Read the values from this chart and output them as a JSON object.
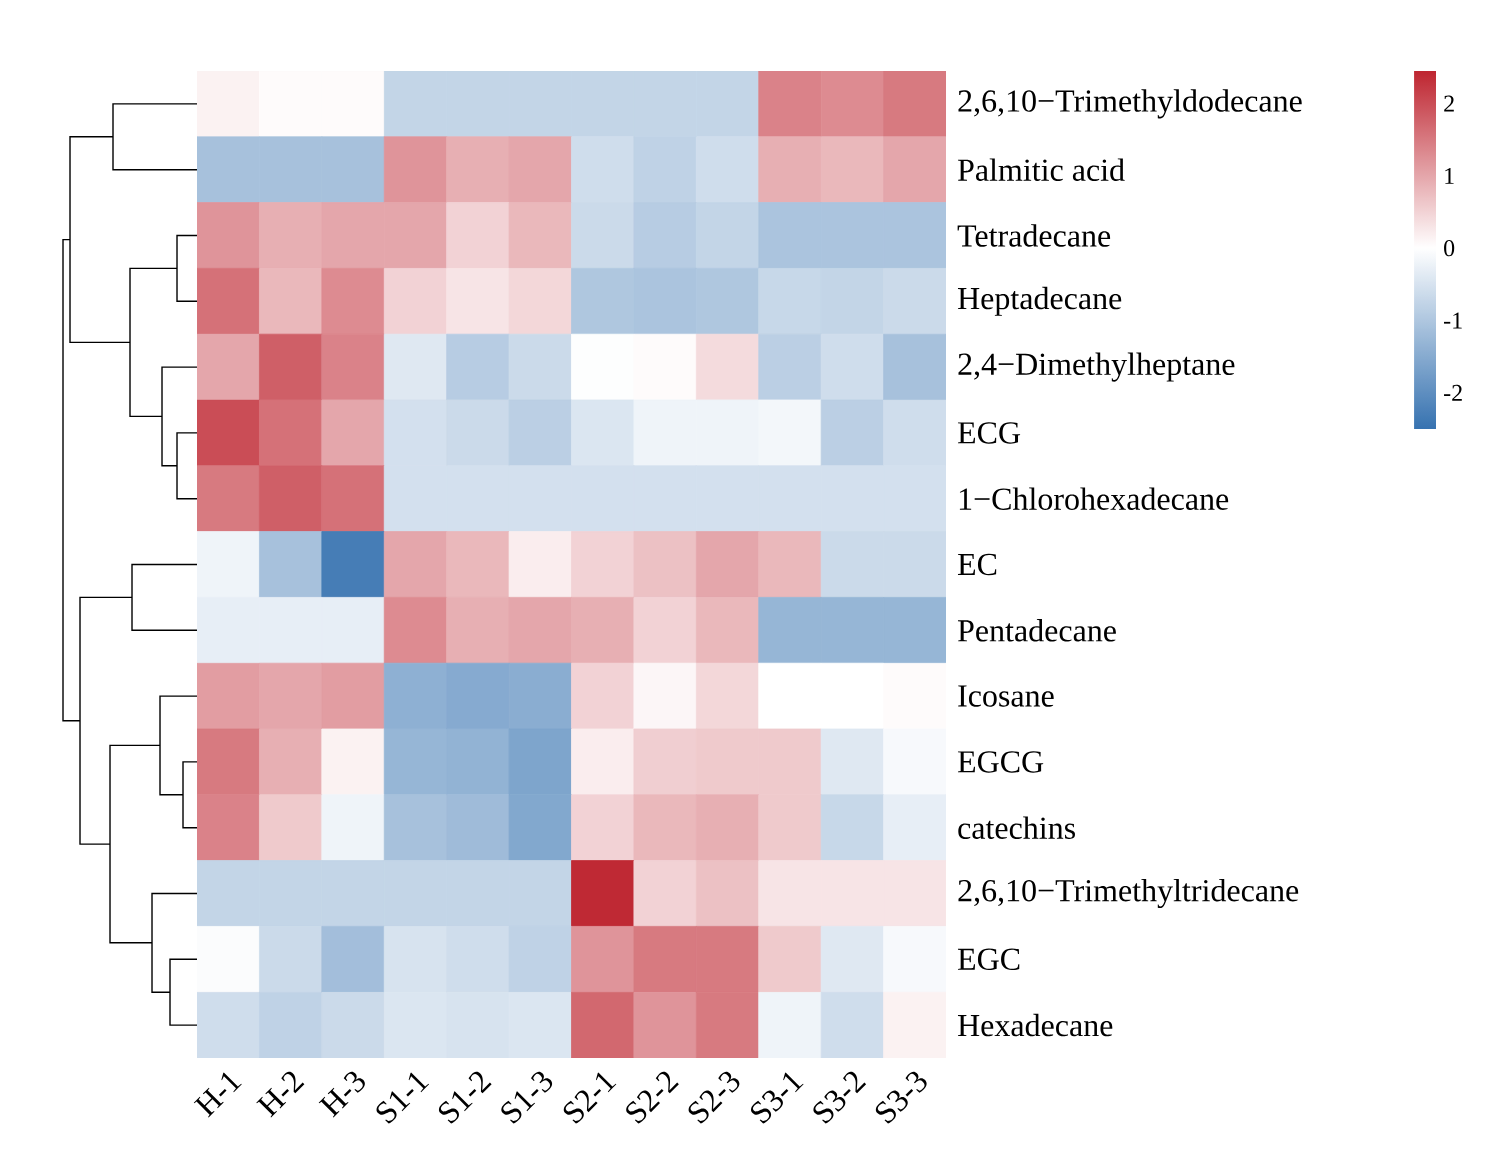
{
  "chart_data": {
    "type": "heatmap",
    "categories": [
      "H-1",
      "H-2",
      "H-3",
      "S1-1",
      "S1-2",
      "S1-3",
      "S2-1",
      "S2-2",
      "S2-3",
      "S3-1",
      "S3-2",
      "S3-3"
    ],
    "y_categories": [
      "2,6,10−Trimethyldodecane",
      "Palmitic acid",
      "Tetradecane",
      "Heptadecane",
      "2,4−Dimethylheptane",
      "ECG",
      "1−Chlorohexadecane",
      "EC",
      "Pentadecane",
      "Icosane",
      "EGCG",
      "catechins",
      "2,6,10−Trimethyltridecane",
      "EGC",
      "Hexadecane"
    ],
    "cells": [
      [
        0.15,
        0.05,
        0.05,
        -0.75,
        -0.75,
        -0.75,
        -0.75,
        -0.75,
        -0.75,
        1.4,
        1.3,
        1.5
      ],
      [
        -1.1,
        -1.1,
        -1.1,
        1.2,
        0.9,
        1.0,
        -0.6,
        -0.8,
        -0.6,
        0.9,
        0.8,
        1.0
      ],
      [
        1.2,
        0.9,
        1.0,
        1.0,
        0.5,
        0.8,
        -0.65,
        -0.9,
        -0.75,
        -1.05,
        -1.05,
        -1.05
      ],
      [
        1.6,
        0.8,
        1.3,
        0.5,
        0.3,
        0.45,
        -1.0,
        -1.05,
        -1.0,
        -0.7,
        -0.75,
        -0.65
      ],
      [
        1.0,
        1.8,
        1.4,
        -0.4,
        -0.9,
        -0.65,
        -0.02,
        0.05,
        0.4,
        -0.85,
        -0.6,
        -1.1
      ],
      [
        2.0,
        1.6,
        1.0,
        -0.55,
        -0.65,
        -0.85,
        -0.45,
        -0.2,
        -0.2,
        -0.15,
        -0.85,
        -0.6
      ],
      [
        1.5,
        1.8,
        1.6,
        -0.55,
        -0.55,
        -0.55,
        -0.55,
        -0.55,
        -0.55,
        -0.55,
        -0.55,
        -0.55
      ],
      [
        -0.2,
        -1.1,
        -2.3,
        1.0,
        0.8,
        0.2,
        0.5,
        0.7,
        1.0,
        0.8,
        -0.65,
        -0.65
      ],
      [
        -0.3,
        -0.3,
        -0.3,
        1.3,
        0.9,
        1.0,
        0.9,
        0.5,
        0.8,
        -1.3,
        -1.3,
        -1.3
      ],
      [
        1.1,
        1.0,
        1.1,
        -1.4,
        -1.5,
        -1.45,
        0.5,
        0.1,
        0.45,
        0.0,
        0.0,
        0.05
      ],
      [
        1.5,
        0.9,
        0.15,
        -1.3,
        -1.35,
        -1.6,
        0.2,
        0.55,
        0.6,
        0.6,
        -0.4,
        -0.1
      ],
      [
        1.4,
        0.6,
        -0.2,
        -1.1,
        -1.2,
        -1.55,
        0.5,
        0.8,
        0.9,
        0.6,
        -0.7,
        -0.3
      ],
      [
        -0.75,
        -0.75,
        -0.75,
        -0.75,
        -0.75,
        -0.75,
        2.4,
        0.5,
        0.7,
        0.3,
        0.3,
        0.3
      ],
      [
        -0.05,
        -0.65,
        -1.15,
        -0.5,
        -0.6,
        -0.8,
        1.2,
        1.5,
        1.5,
        0.6,
        -0.4,
        -0.1
      ],
      [
        -0.6,
        -0.8,
        -0.65,
        -0.45,
        -0.5,
        -0.45,
        1.7,
        1.2,
        1.5,
        -0.2,
        -0.6,
        0.15
      ]
    ],
    "clim": [
      -2.5,
      2.45
    ],
    "cticks": [
      -2,
      -1,
      0,
      1,
      2
    ]
  }
}
